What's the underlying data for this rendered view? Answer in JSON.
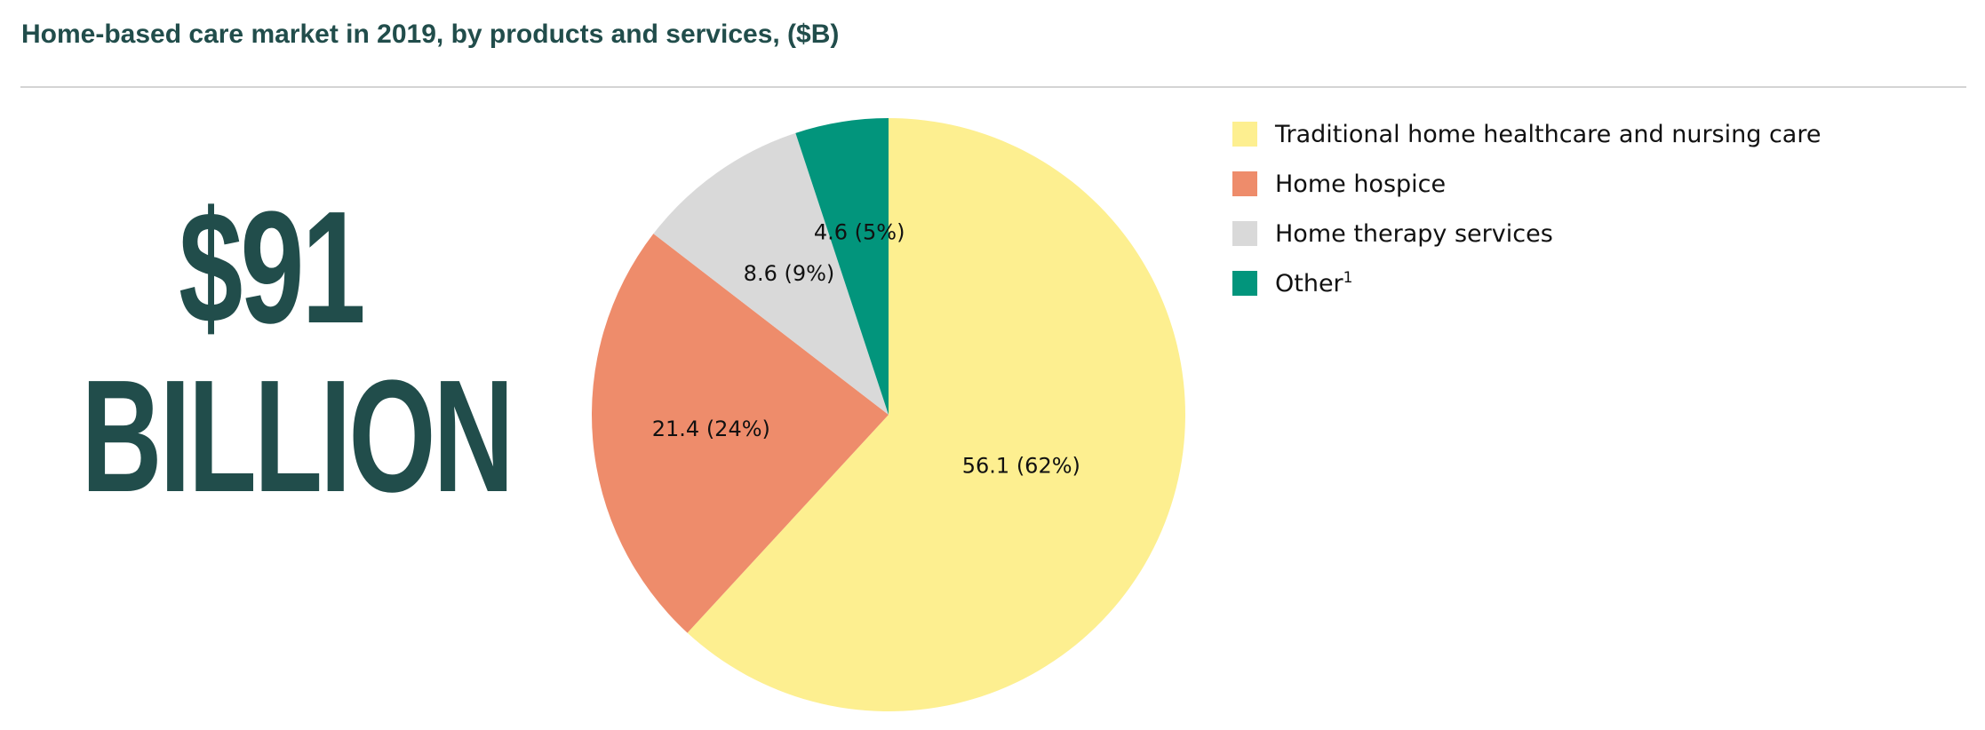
{
  "header": {
    "title": "Home-based care market in 2019, by products and services, ($B)"
  },
  "total": {
    "amount": "$91",
    "unit": "BILLION"
  },
  "chart_data": {
    "type": "pie",
    "title": "Home-based care market in 2019, by products and services, ($B)",
    "start_angle": "12 o'clock",
    "direction": "clockwise",
    "legend_position": "right",
    "slices": [
      {
        "name": "Traditional home healthcare and nursing care",
        "value": 56.1,
        "percent": 62,
        "label": "56.1 (62%)",
        "color": "#fdef90"
      },
      {
        "name": "Home hospice",
        "value": 21.4,
        "percent": 24,
        "label": "21.4 (24%)",
        "color": "#ee8c6b"
      },
      {
        "name": "Home therapy services",
        "value": 8.6,
        "percent": 9,
        "label": "8.6 (9%)",
        "color": "#d9d9d9"
      },
      {
        "name": "Other",
        "sup": "1",
        "value": 4.6,
        "percent": 5,
        "label": "4.6 (5%)",
        "color": "#02957c"
      }
    ]
  }
}
